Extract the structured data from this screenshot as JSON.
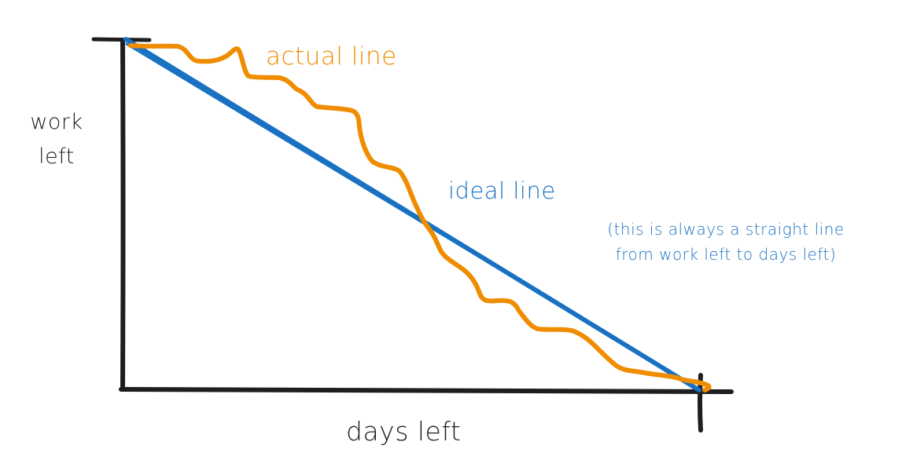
{
  "labels": {
    "y_axis_line1": "work",
    "y_axis_line2": "left",
    "x_axis": "days left",
    "actual": "actual line",
    "ideal": "ideal line",
    "ideal_note_line1": "(this is always a straight line",
    "ideal_note_line2": "from work left to days left)"
  },
  "colors": {
    "axis": "#1e1e1e",
    "actual": "#f08c00",
    "ideal": "#1971c2",
    "text": "#1e1e1e"
  }
}
